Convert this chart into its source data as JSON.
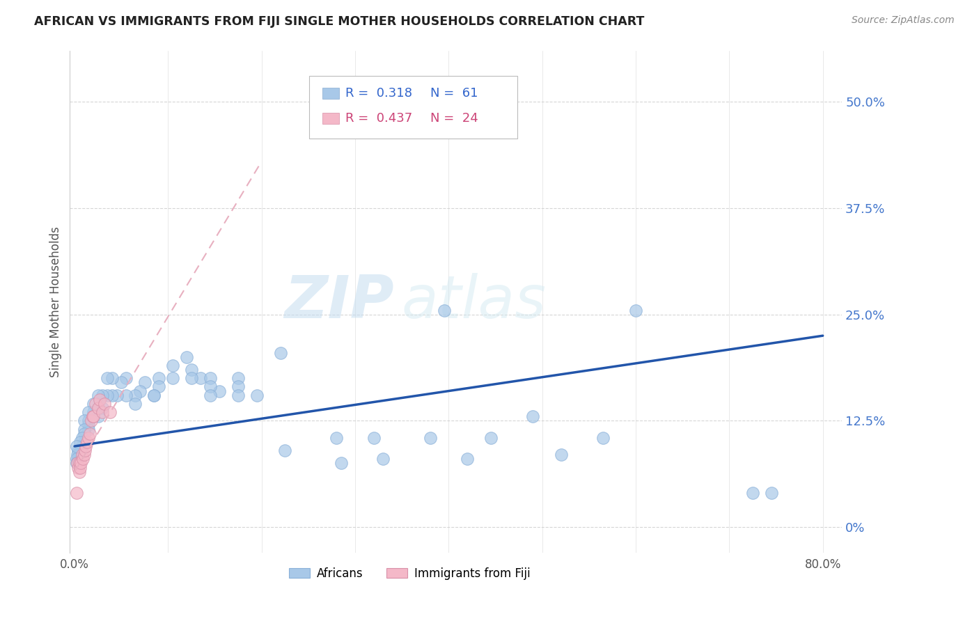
{
  "title": "AFRICAN VS IMMIGRANTS FROM FIJI SINGLE MOTHER HOUSEHOLDS CORRELATION CHART",
  "source": "Source: ZipAtlas.com",
  "ylabel": "Single Mother Households",
  "xlim": [
    -0.005,
    0.82
  ],
  "ylim": [
    -0.03,
    0.56
  ],
  "yticks": [
    0.0,
    0.125,
    0.25,
    0.375,
    0.5
  ],
  "ytick_labels": [
    "0%",
    "12.5%",
    "25.0%",
    "37.5%",
    "50.0%"
  ],
  "xticks": [
    0.0,
    0.1,
    0.2,
    0.3,
    0.4,
    0.5,
    0.6,
    0.7,
    0.8
  ],
  "xtick_labels": [
    "0.0%",
    "",
    "",
    "",
    "",
    "",
    "",
    "",
    "80.0%"
  ],
  "grid_color": "#cccccc",
  "bg_color": "#ffffff",
  "watermark_zip": "ZIP",
  "watermark_atlas": "atlas",
  "africans_color": "#a8c8e8",
  "fiji_color": "#f4b8c8",
  "trend_blue": "#2255aa",
  "trend_pink": "#e8a0b0",
  "legend_r_blue": "R =  0.318",
  "legend_n_blue": "N =  61",
  "legend_r_pink": "R =  0.437",
  "legend_n_pink": "N =  24",
  "africans_x": [
    0.725,
    0.745,
    0.135,
    0.155,
    0.175,
    0.175,
    0.195,
    0.175,
    0.125,
    0.125,
    0.145,
    0.145,
    0.145,
    0.12,
    0.105,
    0.105,
    0.09,
    0.09,
    0.085,
    0.085,
    0.075,
    0.07,
    0.065,
    0.065,
    0.055,
    0.055,
    0.05,
    0.045,
    0.04,
    0.04,
    0.035,
    0.035,
    0.03,
    0.03,
    0.025,
    0.025,
    0.025,
    0.02,
    0.02,
    0.02,
    0.015,
    0.015,
    0.015,
    0.015,
    0.01,
    0.01,
    0.01,
    0.01,
    0.008,
    0.008,
    0.007,
    0.006,
    0.006,
    0.005,
    0.004,
    0.004,
    0.003,
    0.002,
    0.002,
    0.002,
    0.395
  ],
  "africans_y": [
    0.04,
    0.04,
    0.175,
    0.16,
    0.175,
    0.165,
    0.155,
    0.155,
    0.185,
    0.175,
    0.175,
    0.165,
    0.155,
    0.2,
    0.19,
    0.175,
    0.175,
    0.165,
    0.155,
    0.155,
    0.17,
    0.16,
    0.155,
    0.145,
    0.175,
    0.155,
    0.17,
    0.155,
    0.175,
    0.155,
    0.175,
    0.155,
    0.155,
    0.14,
    0.155,
    0.14,
    0.13,
    0.145,
    0.135,
    0.13,
    0.135,
    0.125,
    0.12,
    0.115,
    0.125,
    0.115,
    0.11,
    0.1,
    0.105,
    0.095,
    0.09,
    0.1,
    0.09,
    0.085,
    0.09,
    0.08,
    0.085,
    0.095,
    0.08,
    0.075,
    0.255
  ],
  "africans_x2": [
    0.22,
    0.225,
    0.28,
    0.285,
    0.32,
    0.33,
    0.38,
    0.42,
    0.445,
    0.49,
    0.52,
    0.565,
    0.6
  ],
  "africans_y2": [
    0.205,
    0.09,
    0.105,
    0.075,
    0.105,
    0.08,
    0.105,
    0.08,
    0.105,
    0.13,
    0.085,
    0.105,
    0.255
  ],
  "fiji_x": [
    0.002,
    0.003,
    0.004,
    0.005,
    0.005,
    0.006,
    0.007,
    0.008,
    0.009,
    0.01,
    0.011,
    0.012,
    0.013,
    0.015,
    0.016,
    0.018,
    0.019,
    0.02,
    0.022,
    0.025,
    0.027,
    0.03,
    0.032,
    0.038
  ],
  "fiji_y": [
    0.04,
    0.075,
    0.07,
    0.075,
    0.065,
    0.07,
    0.075,
    0.085,
    0.08,
    0.085,
    0.09,
    0.095,
    0.1,
    0.105,
    0.11,
    0.125,
    0.13,
    0.13,
    0.145,
    0.14,
    0.15,
    0.135,
    0.145,
    0.135
  ],
  "blue_trendline_x": [
    0.0,
    0.8
  ],
  "blue_trendline_y": [
    0.095,
    0.225
  ],
  "pink_trendline_x": [
    0.0,
    0.2
  ],
  "pink_trendline_y": [
    0.065,
    0.43
  ]
}
